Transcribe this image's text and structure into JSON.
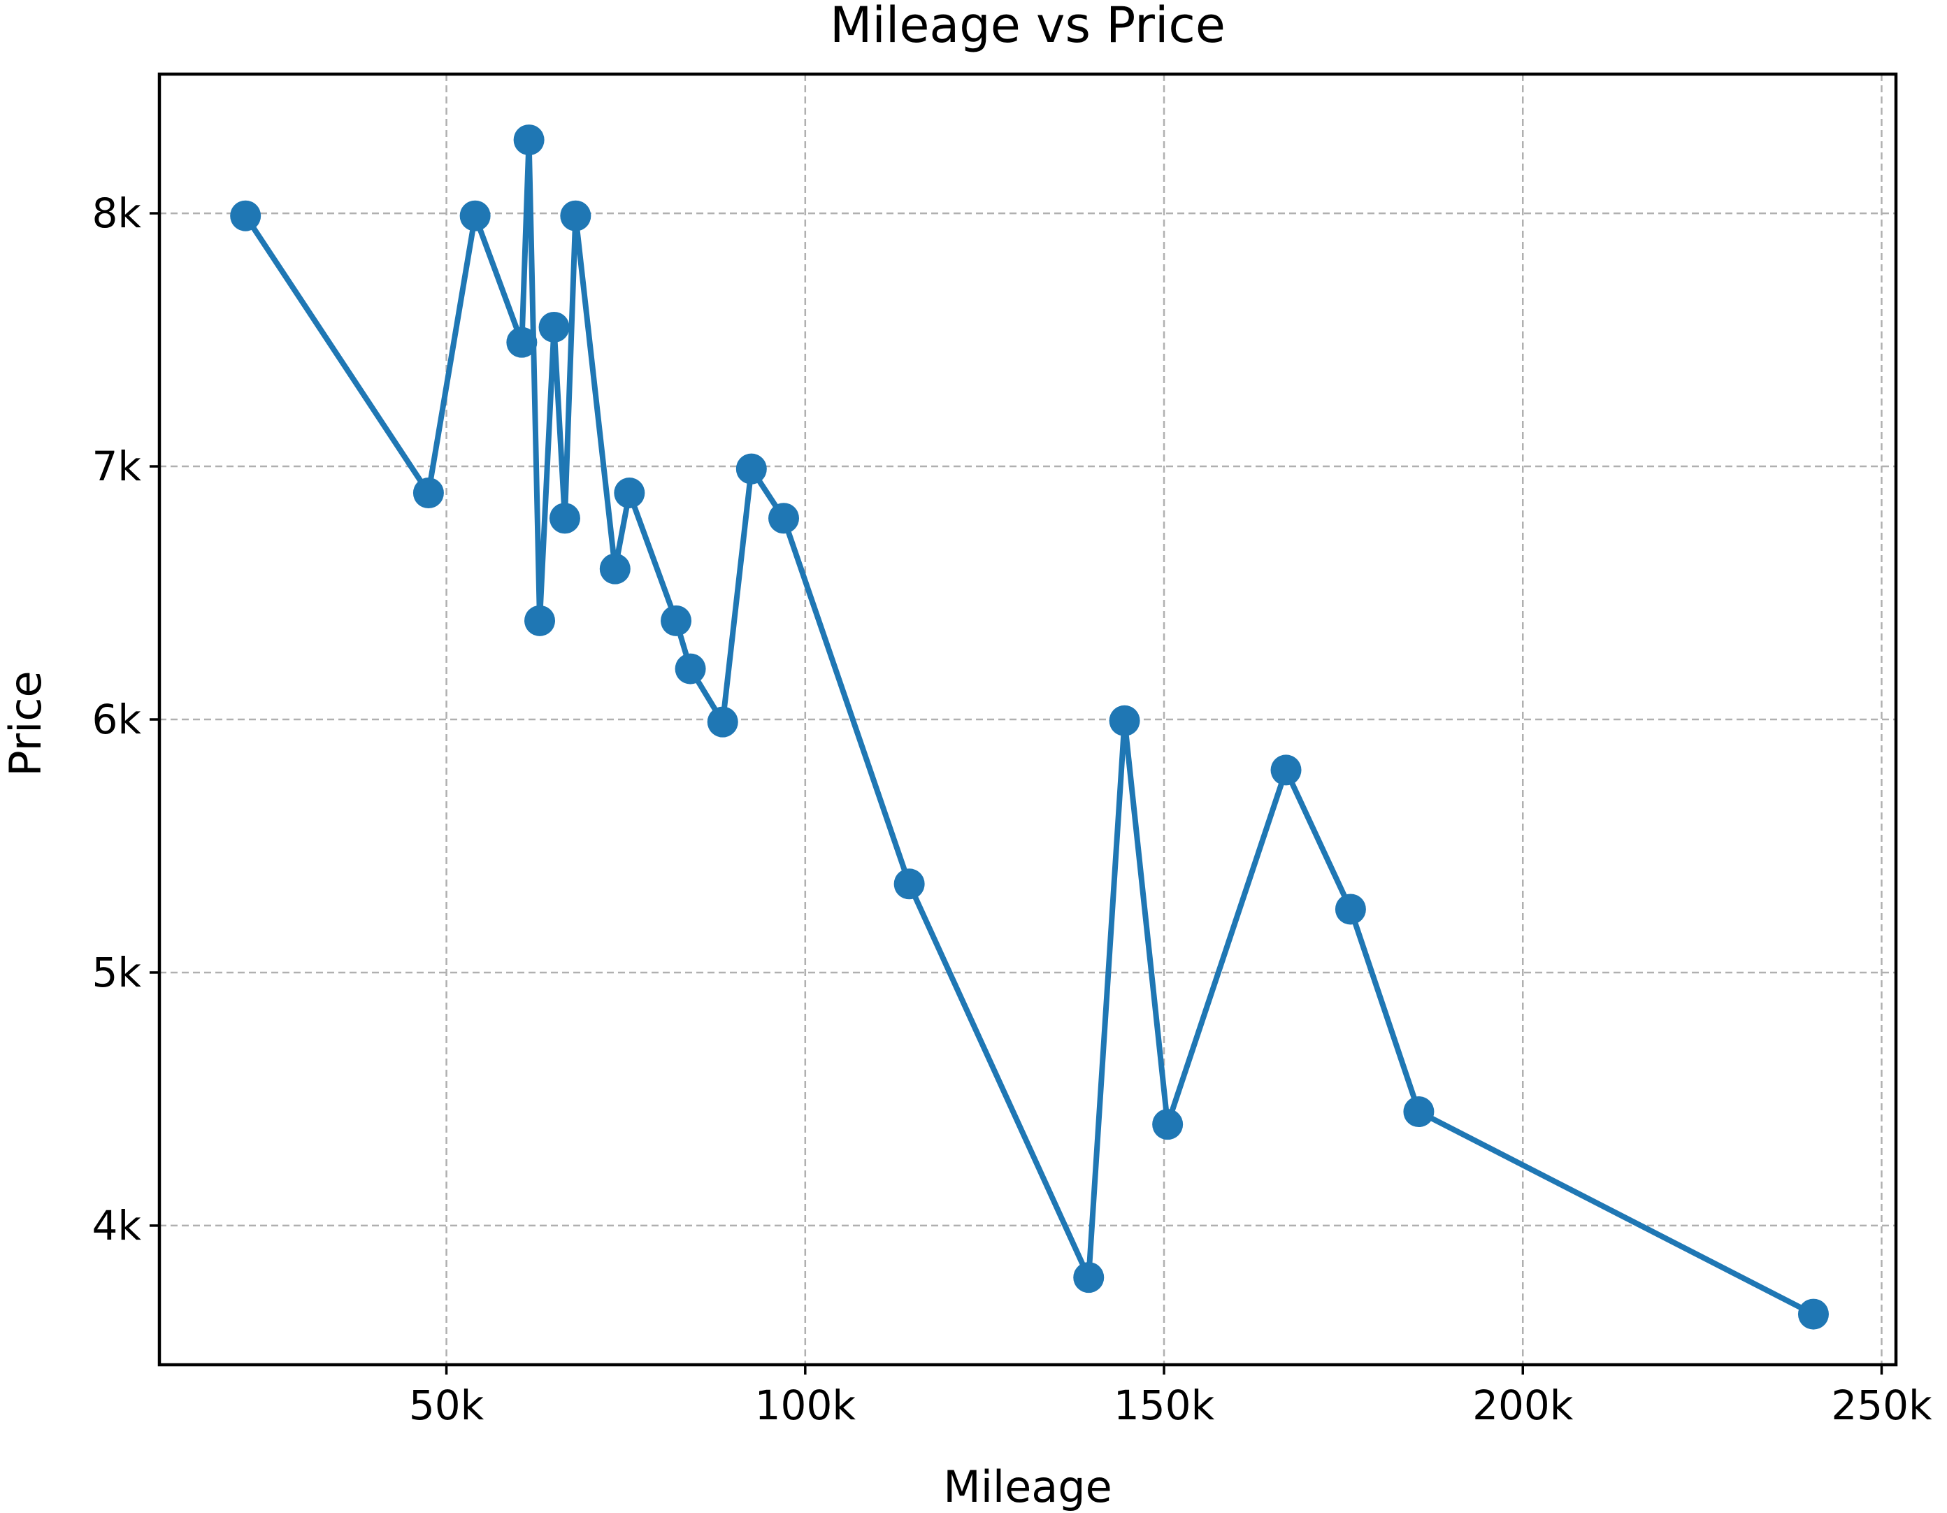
{
  "chart_data": {
    "type": "line",
    "title": "Mileage vs Price",
    "xlabel": "Mileage",
    "ylabel": "Price",
    "xlim": [
      10000,
      252000
    ],
    "ylim": [
      3450,
      8550
    ],
    "xticks": [
      50000,
      100000,
      150000,
      200000,
      250000
    ],
    "xtick_labels": [
      "50k",
      "100k",
      "150k",
      "200k",
      "250k"
    ],
    "yticks": [
      4000,
      5000,
      6000,
      7000,
      8000
    ],
    "ytick_labels": [
      "4k",
      "5k",
      "6k",
      "7k",
      "8k"
    ],
    "grid": true,
    "color": "#1f77b4",
    "series": [
      {
        "x": [
          22000,
          47500,
          54000,
          60500,
          61500,
          63000,
          65000,
          66500,
          68000,
          73500,
          75500,
          82000,
          84000,
          88500,
          92500,
          97000,
          114500,
          139500,
          144500,
          150500,
          167000,
          176000,
          185500,
          240500
        ],
        "y": [
          7990,
          6895,
          7990,
          7490,
          8290,
          6390,
          7550,
          6795,
          7990,
          6595,
          6895,
          6390,
          6200,
          5990,
          6990,
          6795,
          5350,
          3795,
          5995,
          4400,
          5800,
          5250,
          4450,
          3650
        ]
      }
    ]
  }
}
